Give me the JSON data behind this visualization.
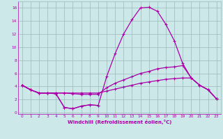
{
  "xlabel": "Windchill (Refroidissement éolien,°C)",
  "background_color": "#cce8e8",
  "line_color": "#aa00aa",
  "grid_color": "#99bbbb",
  "x": [
    0,
    1,
    2,
    3,
    4,
    5,
    6,
    7,
    8,
    9,
    10,
    11,
    12,
    13,
    14,
    15,
    16,
    17,
    18,
    19,
    20,
    21,
    22,
    23
  ],
  "line_main": [
    4.2,
    3.5,
    3.0,
    3.0,
    2.9,
    0.8,
    0.6,
    1.0,
    1.2,
    1.1,
    5.5,
    9.0,
    12.0,
    14.2,
    16.0,
    16.1,
    15.5,
    13.5,
    11.0,
    7.5,
    5.3,
    4.2,
    3.5,
    2.1
  ],
  "line_upper": [
    4.2,
    3.5,
    3.0,
    3.0,
    3.0,
    3.0,
    2.9,
    2.8,
    2.8,
    2.8,
    3.8,
    4.5,
    5.0,
    5.5,
    6.0,
    6.3,
    6.7,
    6.9,
    7.0,
    7.2,
    5.3,
    4.2,
    3.5,
    2.1
  ],
  "line_lower": [
    4.2,
    3.5,
    3.0,
    3.0,
    3.0,
    3.0,
    3.0,
    3.0,
    3.0,
    3.0,
    3.3,
    3.6,
    3.9,
    4.2,
    4.5,
    4.7,
    4.9,
    5.1,
    5.2,
    5.3,
    5.3,
    4.2,
    3.5,
    2.1
  ],
  "line_partial": [
    4.2,
    3.5,
    3.0,
    3.0,
    2.9,
    0.8,
    0.6,
    1.0,
    1.2,
    1.1,
    null,
    null,
    null,
    null,
    null,
    null,
    null,
    null,
    null,
    null,
    null,
    null,
    null,
    null
  ],
  "xlim": [
    -0.5,
    23.5
  ],
  "ylim": [
    -0.2,
    17.0
  ],
  "yticks": [
    0,
    2,
    4,
    6,
    8,
    10,
    12,
    14,
    16
  ],
  "xticks": [
    0,
    1,
    2,
    3,
    4,
    5,
    6,
    7,
    8,
    9,
    10,
    11,
    12,
    13,
    14,
    15,
    16,
    17,
    18,
    19,
    20,
    21,
    22,
    23
  ],
  "xlabel_fontsize": 5.0,
  "tick_fontsize": 4.2,
  "linewidth": 0.9,
  "markersize": 2.5
}
